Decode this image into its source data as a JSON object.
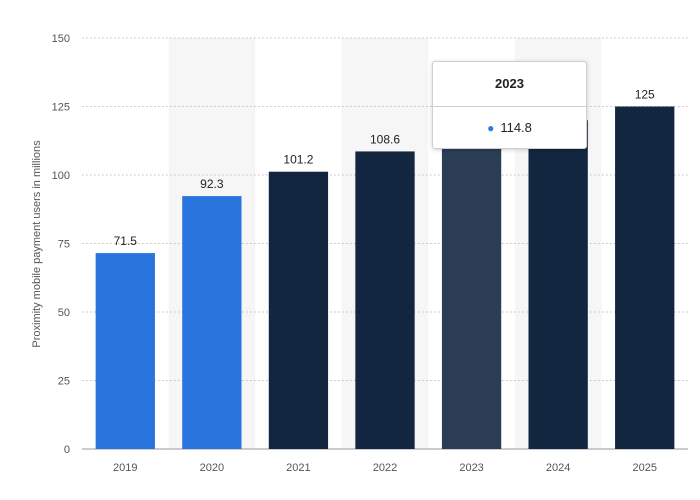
{
  "chart_data": {
    "type": "bar",
    "categories": [
      "2019",
      "2020",
      "2021",
      "2022",
      "2023",
      "2024",
      "2025"
    ],
    "values": [
      71.5,
      92.3,
      101.2,
      108.6,
      114.8,
      120.0,
      125
    ],
    "data_labels": [
      "71.5",
      "92.3",
      "101.2",
      "108.6",
      "",
      "",
      "125"
    ],
    "ylabel": "Proximity mobile payment users in millions",
    "xlabel": "",
    "ylim": [
      0,
      150
    ],
    "yticks": [
      0,
      25,
      50,
      75,
      100,
      125,
      150
    ],
    "grid": true,
    "bar_colors": [
      "#2a74dd",
      "#2a74dd",
      "#12263f",
      "#12263f",
      "#2c3e56",
      "#12263f",
      "#12263f"
    ],
    "highlight_band_color": "#f6f6f6"
  },
  "tooltip": {
    "title": "2023",
    "value": "114.8",
    "marker_color": "#2a7de1"
  }
}
